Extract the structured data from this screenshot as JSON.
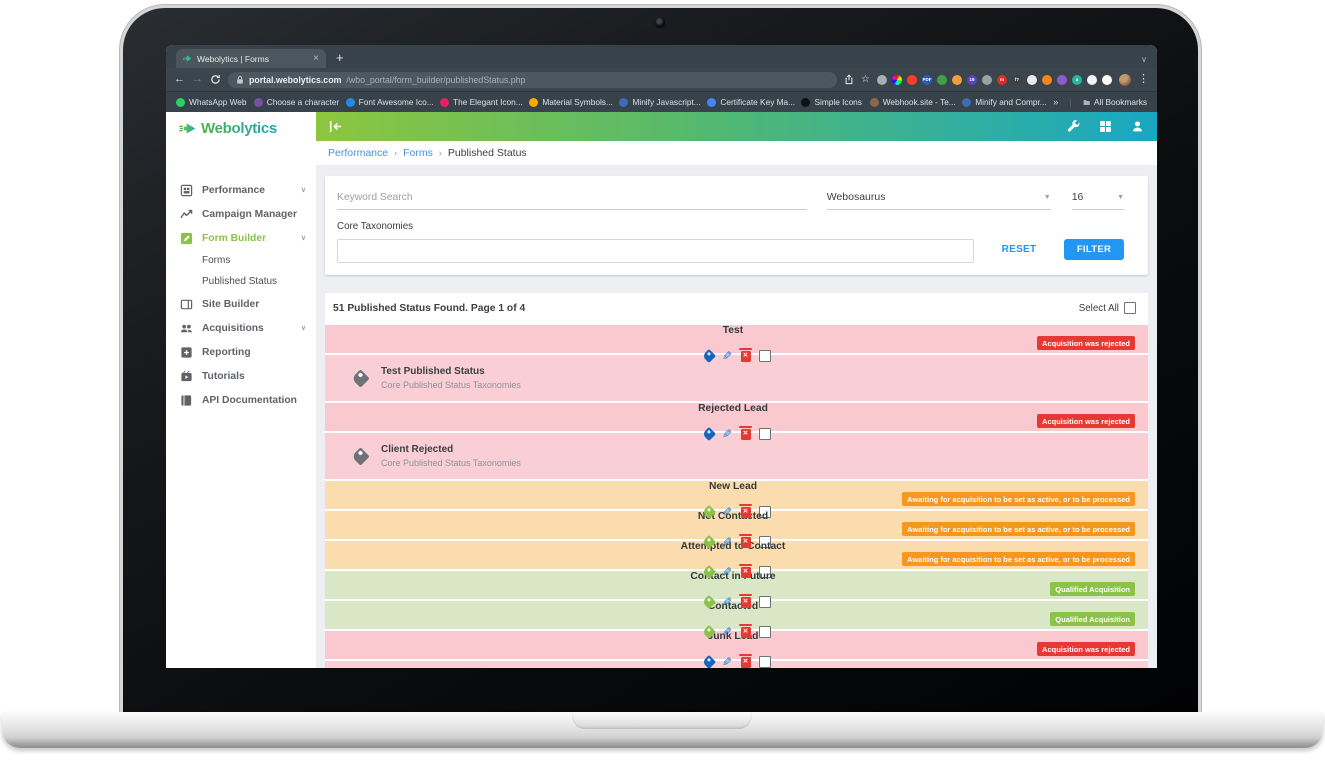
{
  "browser": {
    "tab": {
      "title": "Webolytics | Forms",
      "close_glyph": "×",
      "new_tab_glyph": "+",
      "caret_glyph": "∨"
    },
    "nav": {
      "back_glyph": "←",
      "forward_glyph": "→"
    },
    "url": {
      "domain": "portal.webolytics.com",
      "path": "/wbo_portal/form_builder/publishedStatus.php"
    },
    "extensions": [
      {
        "name": "gear-extension",
        "color": "#a8adb3"
      },
      {
        "name": "color-wheel-extension",
        "color": "wheel"
      },
      {
        "name": "lightshot-extension",
        "color": "#ff3d2e"
      },
      {
        "name": "pdf-extension",
        "color": "#2a5db0",
        "glyph": "PDF"
      },
      {
        "name": "green-check-extension",
        "color": "#43a047"
      },
      {
        "name": "ruler-extension",
        "color": "#ef9f3a"
      },
      {
        "name": "purple-extension",
        "color": "#5e42c1",
        "glyph": "19"
      },
      {
        "name": "flower-extension",
        "color": "#9aa0a6"
      },
      {
        "name": "m-extension",
        "color": "#d93025",
        "glyph": "m"
      },
      {
        "name": "fonts-extension",
        "color": "#3b4147",
        "glyph": "f?"
      },
      {
        "name": "light-circle-extension",
        "color": "#e8eaed"
      },
      {
        "name": "metamask-extension",
        "color": "#f6851b"
      },
      {
        "name": "purple-circle-extension",
        "color": "#8e5bd1"
      },
      {
        "name": "a-extension",
        "color": "#2bb5a0",
        "glyph": "a"
      },
      {
        "name": "puzzle-extension",
        "color": "#f1f3f4"
      },
      {
        "name": "sidebar-extension",
        "color": "#ffffff"
      }
    ],
    "menu_glyph": "⋮",
    "bookmarks": [
      {
        "label": "WhatsApp Web",
        "color": "#25d366"
      },
      {
        "label": "Choose a character",
        "color": "#7b4fa6"
      },
      {
        "label": "Font Awesome Ico...",
        "color": "#228be6"
      },
      {
        "label": "The Elegant Icon...",
        "color": "#e91e63"
      },
      {
        "label": "Material Symbols...",
        "color": "#f9ab00"
      },
      {
        "label": "Minify Javascript...",
        "color": "#3b6db5"
      },
      {
        "label": "Certificate Key Ma...",
        "color": "#4285f4"
      },
      {
        "label": "Simple Icons",
        "color": "#111111"
      },
      {
        "label": "Webhook.site - Te...",
        "color": "#8d6748"
      },
      {
        "label": "Minify and Compr...",
        "color": "#3b6db5"
      }
    ],
    "bookmarks_overflow_glyph": "»",
    "all_bookmarks_label": "All Bookmarks"
  },
  "app": {
    "logo_text": "Webolytics",
    "breadcrumb": {
      "items": [
        "Performance",
        "Forms",
        "Published Status"
      ],
      "separator": "›"
    },
    "sidebar": {
      "items": [
        {
          "label": "Performance",
          "icon": "dashboard",
          "chevron": true
        },
        {
          "label": "Campaign Manager",
          "icon": "trend"
        },
        {
          "label": "Form Builder",
          "icon": "form",
          "chevron": true,
          "active": true
        },
        {
          "label": "Forms",
          "sub": true
        },
        {
          "label": "Published Status",
          "sub": true
        },
        {
          "label": "Site Builder",
          "icon": "site"
        },
        {
          "label": "Acquisitions",
          "icon": "people",
          "chevron": true
        },
        {
          "label": "Reporting",
          "icon": "report"
        },
        {
          "label": "Tutorials",
          "icon": "video"
        },
        {
          "label": "API Documentation",
          "icon": "book"
        }
      ],
      "chevron_glyph": "∨"
    },
    "filter": {
      "keyword_placeholder": "Keyword Search",
      "account_value": "Webosaurus",
      "page_size_value": "16",
      "select_arrow_glyph": "▼",
      "core_taxonomies_label": "Core Taxonomies",
      "core_taxonomies_value": "",
      "reset_label": "RESET",
      "filter_label": "FILTER"
    },
    "table": {
      "summary": "51 Published Status Found. Page 1 of 4",
      "select_all_label": "Select All",
      "rows": [
        {
          "kind": "main",
          "label": "Test",
          "badge": "Acquisition was rejected",
          "status": "rejected"
        },
        {
          "kind": "sub",
          "title": "Test Published Status",
          "subtitle": "Core Published Status Taxonomies",
          "status": "rejected"
        },
        {
          "kind": "main",
          "label": "Rejected Lead",
          "badge": "Acquisition was rejected",
          "status": "rejected"
        },
        {
          "kind": "sub",
          "title": "Client Rejected",
          "subtitle": "Core Published Status Taxonomies",
          "status": "rejected"
        },
        {
          "kind": "main",
          "label": "New Lead",
          "badge": "Awaiting for acquisition to be set as active, or to be processed",
          "status": "awaiting"
        },
        {
          "kind": "main",
          "label": "Not Contacted",
          "badge": "Awaiting for acquisition to be set as active, or to be processed",
          "status": "awaiting"
        },
        {
          "kind": "main",
          "label": "Attempted to Contact",
          "badge": "Awaiting for acquisition to be set as active, or to be processed",
          "status": "awaiting"
        },
        {
          "kind": "main",
          "label": "Contact in Future",
          "badge": "Qualified Acquisition",
          "status": "qualified"
        },
        {
          "kind": "main",
          "label": "Contacted",
          "badge": "Qualified Acquisition",
          "status": "qualified"
        },
        {
          "kind": "main",
          "label": "Junk Lead",
          "badge": "Acquisition was rejected",
          "status": "rejected"
        },
        {
          "kind": "partial",
          "status": "rejected"
        }
      ]
    },
    "statuses": {
      "rejected": {
        "row": "#f9c9cf",
        "row_sub": "#f9ced4",
        "badge": "#e53935",
        "tag": "#1565c0"
      },
      "awaiting": {
        "row": "#fbdcae",
        "row_sub": "#fce2ba",
        "badge": "#f59720",
        "tag": "#8bc34a"
      },
      "qualified": {
        "row": "#d9e7c6",
        "row_sub": "#e0ebd0",
        "badge": "#8bc34a",
        "tag": "#8bc34a"
      }
    },
    "fab_glyph": "‹··›",
    "edit_glyph": "✎",
    "delete_glyph": "✕"
  }
}
